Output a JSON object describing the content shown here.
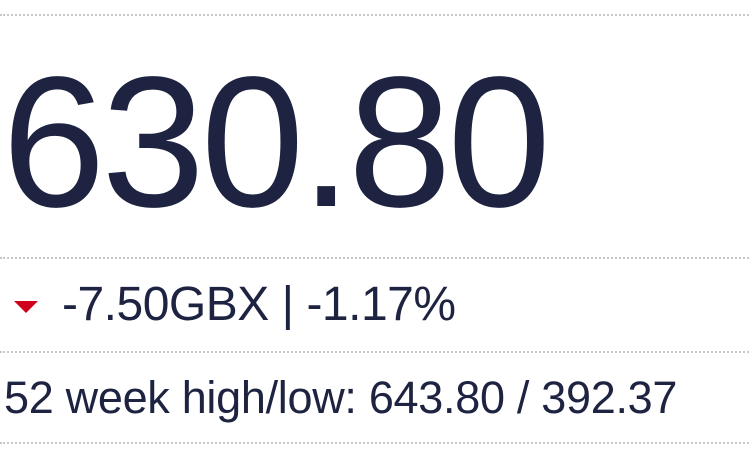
{
  "quote": {
    "price": "630.80",
    "change": "-7.50GBX",
    "separator": "|",
    "change_percent": "-1.17%",
    "direction_icon": "down-triangle-icon",
    "direction_color": "#d0021b",
    "range_label": "52 week high/low:",
    "range_high": "643.80",
    "range_sep": "/",
    "range_low": "392.37"
  }
}
